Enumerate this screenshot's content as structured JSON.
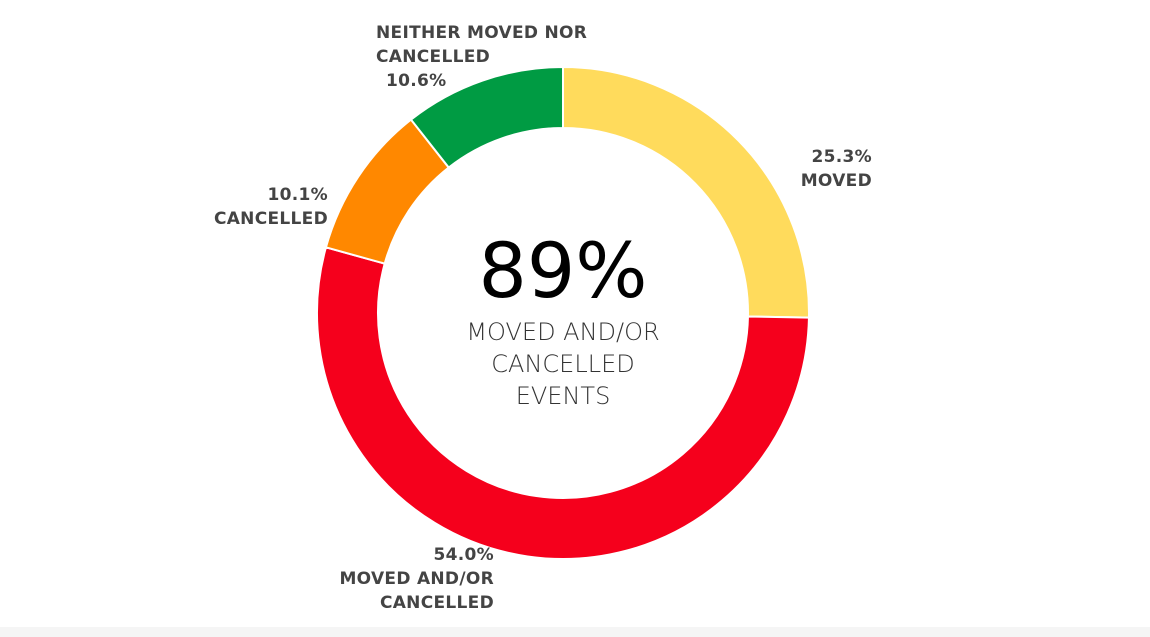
{
  "chart_data": {
    "type": "donut",
    "center_value": "89%",
    "center_label": "MOVED AND/OR CANCELLED EVENTS",
    "categories": [
      "MOVED",
      "MOVED AND/OR CANCELLED",
      "CANCELLED",
      "NEITHER MOVED NOR CANCELLED"
    ],
    "values": [
      25.3,
      54.0,
      10.1,
      10.6
    ],
    "value_labels": [
      "25.3%",
      "54.0%",
      "10.1%",
      "10.6%"
    ],
    "colors": [
      "#ffdb5c",
      "#f5001c",
      "#ff8800",
      "#009b43"
    ]
  }
}
